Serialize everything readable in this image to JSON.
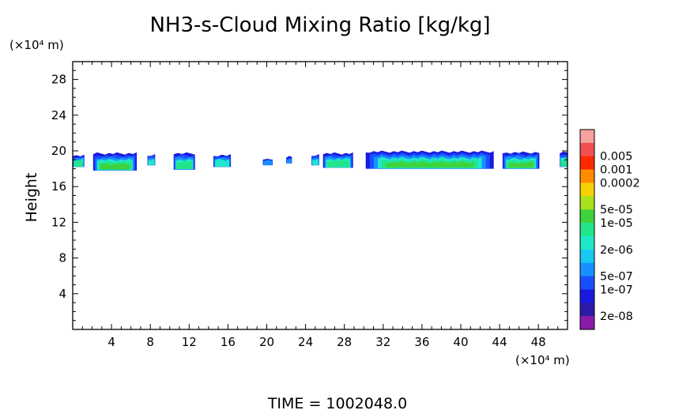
{
  "chart_data": {
    "type": "heatmap",
    "title": "NH3-s-Cloud Mixing Ratio [kg/kg]",
    "xlabel": "",
    "ylabel": "Height",
    "x_unit": "(×10⁴ m)",
    "y_unit": "(×10⁴ m)",
    "xlim": [
      0,
      51
    ],
    "ylim": [
      0,
      30
    ],
    "x_ticks": [
      4,
      8,
      12,
      16,
      20,
      24,
      28,
      32,
      36,
      40,
      44,
      48
    ],
    "y_ticks": [
      4,
      8,
      12,
      16,
      20,
      24,
      28
    ],
    "footer": "TIME = 1002048.0",
    "grid": false,
    "colorbar": {
      "placement": "right",
      "levels": [
        {
          "label": "",
          "color": "#f7a1a1"
        },
        {
          "label": "0.005",
          "color": "#f25050"
        },
        {
          "label": "0.001",
          "color": "#ff2a00"
        },
        {
          "label": "0.0002",
          "color": "#ff8c00"
        },
        {
          "label": "",
          "color": "#f6d100"
        },
        {
          "label": "5e-05",
          "color": "#a8e21e"
        },
        {
          "label": "1e-05",
          "color": "#3fd23a"
        },
        {
          "label": "",
          "color": "#22e48a"
        },
        {
          "label": "2e-06",
          "color": "#1fe8c8"
        },
        {
          "label": "",
          "color": "#18c8f0"
        },
        {
          "label": "5e-07",
          "color": "#1890ff"
        },
        {
          "label": "1e-07",
          "color": "#1850ff"
        },
        {
          "label": "",
          "color": "#1a1adf"
        },
        {
          "label": "2e-08",
          "color": "#2c1aa8"
        },
        {
          "label": "",
          "color": "#8b1aa8"
        }
      ]
    },
    "cloud_segments": [
      {
        "x0": 0.0,
        "x1": 1.2,
        "top": 19.6,
        "bottom": 18.2,
        "core": 2
      },
      {
        "x0": 2.1,
        "x1": 6.6,
        "top": 19.8,
        "bottom": 17.8,
        "core": 3
      },
      {
        "x0": 7.7,
        "x1": 8.5,
        "top": 19.6,
        "bottom": 18.4,
        "core": 1
      },
      {
        "x0": 10.4,
        "x1": 12.6,
        "top": 19.8,
        "bottom": 17.9,
        "core": 2
      },
      {
        "x0": 14.5,
        "x1": 16.3,
        "top": 19.6,
        "bottom": 18.2,
        "core": 1
      },
      {
        "x0": 19.6,
        "x1": 20.6,
        "top": 19.2,
        "bottom": 18.4,
        "core": 0
      },
      {
        "x0": 22.0,
        "x1": 22.6,
        "top": 19.4,
        "bottom": 18.6,
        "core": 0
      },
      {
        "x0": 24.6,
        "x1": 25.4,
        "top": 19.6,
        "bottom": 18.4,
        "core": 1
      },
      {
        "x0": 25.8,
        "x1": 28.9,
        "top": 19.8,
        "bottom": 18.1,
        "core": 2
      },
      {
        "x0": 30.2,
        "x1": 43.4,
        "top": 20.0,
        "bottom": 18.0,
        "core": 3
      },
      {
        "x0": 44.3,
        "x1": 48.1,
        "top": 19.9,
        "bottom": 18.0,
        "core": 3
      },
      {
        "x0": 50.2,
        "x1": 51.0,
        "top": 19.9,
        "bottom": 18.2,
        "core": 2
      }
    ]
  }
}
